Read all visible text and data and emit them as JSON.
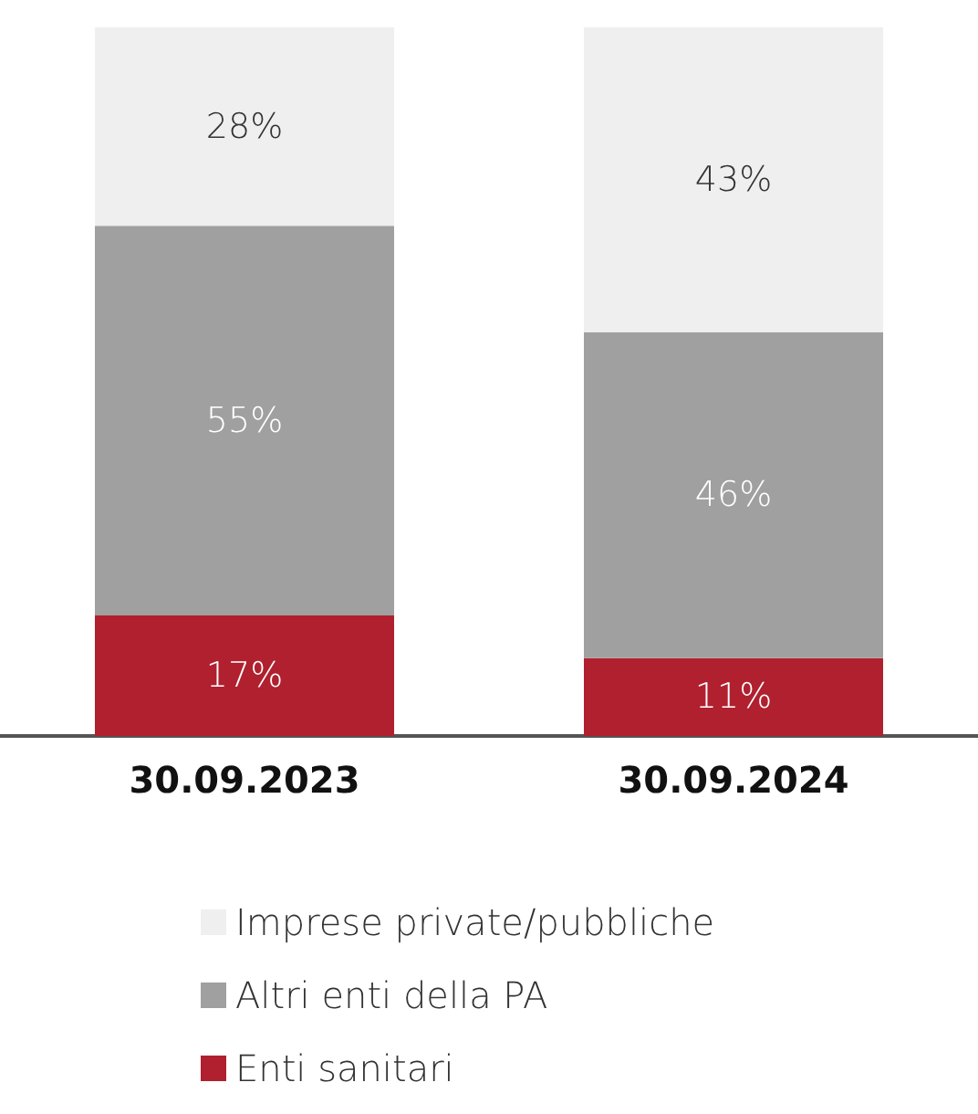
{
  "chart_data": {
    "type": "bar",
    "stacked": true,
    "categories": [
      "30.09.2023",
      "30.09.2024"
    ],
    "series": [
      {
        "name": "Enti sanitari",
        "color": "#b0202e",
        "values": [
          17,
          11
        ],
        "value_labels": [
          "17%",
          "11%"
        ]
      },
      {
        "name": "Altri enti della PA",
        "color": "#a0a0a0",
        "values": [
          55,
          46
        ],
        "value_labels": [
          "55%",
          "46%"
        ]
      },
      {
        "name": "Imprese private/pubbliche",
        "color": "#efefef",
        "values": [
          28,
          43
        ],
        "value_labels": [
          "28%",
          "43%"
        ]
      }
    ],
    "ylim": [
      0,
      100
    ],
    "tick_labels": "x",
    "grid": false,
    "legend": "bottom"
  }
}
